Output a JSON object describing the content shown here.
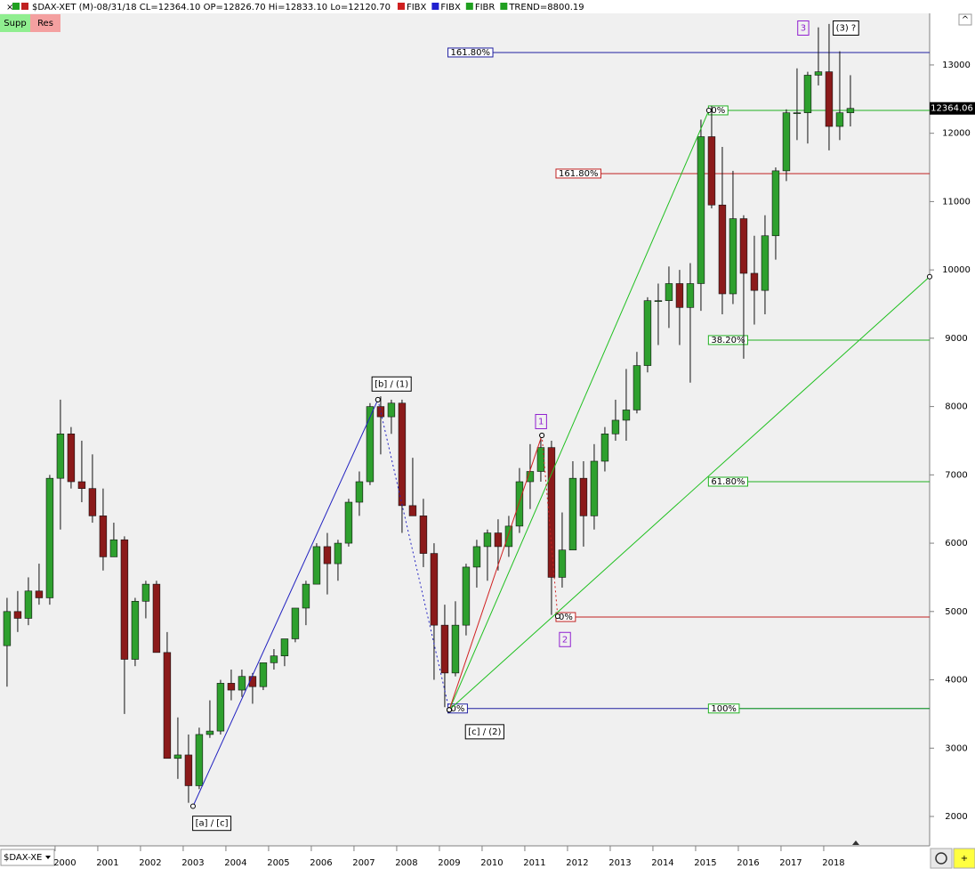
{
  "header": {
    "title": "$DAX-XET (M)-08/31/18 CL=12364.10 OP=12826.70 Hi=12833.10 Lo=12120.70",
    "indicators": [
      {
        "name": "FIBX",
        "color": "#d02020"
      },
      {
        "name": "FIBX",
        "color": "#2020d0"
      },
      {
        "name": "FIBR",
        "color": "#20a020"
      },
      {
        "name": "TREND=8800.19",
        "color": "#20a020"
      }
    ],
    "buttons": [
      {
        "label": "Supp",
        "color": "#90ee90"
      },
      {
        "label": "Res",
        "color": "#f4a0a0"
      }
    ]
  },
  "symbol_selector": "$DAX-XE",
  "chart_data": {
    "type": "candlestick",
    "x": [
      1998.875,
      1999.125,
      1999.375,
      1999.625,
      1999.875,
      2000.125,
      2000.375,
      2000.625,
      2000.875,
      2001.125,
      2001.375,
      2001.625,
      2001.875,
      2002.125,
      2002.375,
      2002.625,
      2002.875,
      2003.125,
      2003.375,
      2003.625,
      2003.875,
      2004.125,
      2004.375,
      2004.625,
      2004.875,
      2005.125,
      2005.375,
      2005.625,
      2005.875,
      2006.125,
      2006.375,
      2006.625,
      2006.875,
      2007.125,
      2007.375,
      2007.625,
      2007.875,
      2008.125,
      2008.375,
      2008.625,
      2008.875,
      2009.125,
      2009.375,
      2009.625,
      2009.875,
      2010.125,
      2010.375,
      2010.625,
      2010.875,
      2011.125,
      2011.375,
      2011.625,
      2011.875,
      2012.125,
      2012.375,
      2012.625,
      2012.875,
      2013.125,
      2013.375,
      2013.625,
      2013.875,
      2014.125,
      2014.375,
      2014.625,
      2014.875,
      2015.125,
      2015.375,
      2015.625,
      2015.875,
      2016.125,
      2016.375,
      2016.625,
      2016.875,
      2017.125,
      2017.375,
      2017.625,
      2017.875,
      2018.125,
      2018.375,
      2018.625
    ],
    "open": [
      4500,
      5000,
      4900,
      5300,
      5200,
      6950,
      7600,
      6900,
      6800,
      6400,
      5800,
      6050,
      4300,
      5150,
      5400,
      4400,
      2850,
      2900,
      2450,
      3200,
      3250,
      3950,
      3850,
      4050,
      3900,
      4250,
      4350,
      4600,
      5050,
      5400,
      5950,
      5700,
      6000,
      6600,
      6900,
      8000,
      7850,
      8050,
      6550,
      6400,
      5850,
      4800,
      4100,
      4800,
      5650,
      5950,
      6150,
      5950,
      6250,
      6900,
      7050,
      7400,
      5500,
      5900,
      6950,
      6400,
      7200,
      7600,
      7800,
      7950,
      8600,
      9550,
      9550,
      9800,
      9450,
      9800,
      11950,
      10950,
      9650,
      10750,
      9950,
      9700,
      10500,
      11450,
      12300,
      12300,
      12850,
      12900,
      12100,
      12300
    ],
    "high": [
      5200,
      5300,
      5500,
      5700,
      7000,
      8100,
      7700,
      7500,
      7300,
      6800,
      6300,
      6100,
      5200,
      5450,
      5450,
      4700,
      3450,
      3200,
      3300,
      3700,
      4000,
      4150,
      4150,
      4100,
      4250,
      4450,
      4600,
      5050,
      5450,
      6000,
      6150,
      6050,
      6650,
      7050,
      8050,
      8150,
      8100,
      8100,
      7250,
      6650,
      6000,
      5100,
      5150,
      5700,
      6050,
      6200,
      6350,
      6400,
      7100,
      7450,
      7600,
      7500,
      6450,
      7200,
      7200,
      7450,
      7700,
      8100,
      8550,
      8800,
      9600,
      9800,
      10050,
      10000,
      10100,
      12200,
      12400,
      11800,
      11450,
      10800,
      10500,
      10800,
      11500,
      12350,
      12950,
      12900,
      13550,
      13600,
      13200,
      12850
    ],
    "low": [
      3900,
      4700,
      4800,
      5100,
      5100,
      6200,
      6800,
      6600,
      6300,
      5600,
      5800,
      3500,
      4200,
      4900,
      4400,
      2850,
      2550,
      2200,
      2400,
      3150,
      3200,
      3700,
      3750,
      3650,
      3850,
      4150,
      4200,
      4550,
      4800,
      5400,
      5250,
      5450,
      5950,
      6400,
      6850,
      7300,
      7600,
      6150,
      6400,
      5650,
      4000,
      3600,
      4050,
      4650,
      5350,
      5450,
      5600,
      5800,
      6150,
      6500,
      6900,
      4950,
      5350,
      5900,
      5950,
      6200,
      7050,
      7500,
      7500,
      7900,
      8500,
      8900,
      9150,
      8900,
      8350,
      9400,
      10900,
      9350,
      9500,
      8700,
      9200,
      9350,
      10150,
      11300,
      11900,
      11850,
      12700,
      11750,
      11900,
      12100
    ],
    "close": [
      5000,
      4900,
      5300,
      5200,
      6950,
      7600,
      6900,
      6800,
      6400,
      5800,
      6050,
      4300,
      5150,
      5400,
      4400,
      2850,
      2900,
      2450,
      3200,
      3250,
      3950,
      3850,
      4050,
      3900,
      4250,
      4350,
      4600,
      5050,
      5400,
      5950,
      5700,
      6000,
      6600,
      6900,
      8000,
      7850,
      8050,
      6550,
      6400,
      5850,
      4800,
      4100,
      4800,
      5650,
      5950,
      6150,
      5950,
      6250,
      6900,
      7050,
      7400,
      5500,
      5900,
      6950,
      6400,
      7200,
      7600,
      7800,
      7950,
      8600,
      9550,
      9550,
      9800,
      9450,
      9800,
      11950,
      10950,
      9650,
      10750,
      9950,
      9700,
      10500,
      11450,
      12300,
      12300,
      12850,
      12900,
      12100,
      12300,
      12364.1
    ],
    "up_color": "#2ea02e",
    "down_color": "#8b1a1a",
    "xlim": [
      1998.71,
      2020.48
    ],
    "ylim": [
      1570,
      13755
    ],
    "xticks": [
      2000,
      2001,
      2002,
      2003,
      2004,
      2005,
      2006,
      2007,
      2008,
      2009,
      2010,
      2011,
      2012,
      2013,
      2014,
      2015,
      2016,
      2017,
      2018
    ],
    "yticks": [
      2000,
      3000,
      4000,
      5000,
      6000,
      7000,
      8000,
      9000,
      10000,
      11000,
      12000,
      13000
    ],
    "last_price": 12364.06,
    "fib_levels": [
      {
        "label": "161.80%",
        "value": 13182,
        "color": "#2020a0",
        "start": 2009.2,
        "label_x": 2009.2
      },
      {
        "label": "0%",
        "value": 3580,
        "color": "#2020a0",
        "start": 2009.2,
        "label_x": 2009.2
      },
      {
        "label": "0%",
        "value": 12335,
        "color": "#20b020",
        "start": 2015.3,
        "label_x": 2015.3
      },
      {
        "label": "38.20%",
        "value": 8973,
        "color": "#20b020",
        "start": 2015.3,
        "label_x": 2015.3
      },
      {
        "label": "61.80%",
        "value": 6900,
        "color": "#20b020",
        "start": 2015.3,
        "label_x": 2015.3
      },
      {
        "label": "100%",
        "value": 3580,
        "color": "#20b020",
        "start": 2015.3,
        "label_x": 2015.3
      },
      {
        "label": "161.80%",
        "value": 11410,
        "color": "#c02020",
        "start": 2011.73,
        "label_x": 2011.73
      },
      {
        "label": "0%",
        "value": 4919,
        "color": "#c02020",
        "start": 2011.73,
        "label_x": 2011.73
      }
    ],
    "trendlines": [
      {
        "x": [
          2003.23,
          2007.56
        ],
        "y": [
          2150,
          8100
        ],
        "color": "#2020c0",
        "dashed": false
      },
      {
        "x": [
          2007.56,
          2009.23
        ],
        "y": [
          8100,
          3560
        ],
        "color": "#2020c0",
        "dashed": true
      },
      {
        "x": [
          2009.23,
          2015.31
        ],
        "y": [
          3560,
          12335
        ],
        "color": "#20c020",
        "dashed": false
      },
      {
        "x": [
          2009.23,
          2020.48
        ],
        "y": [
          3560,
          9900
        ],
        "color": "#20c020",
        "dashed": false
      },
      {
        "x": [
          2009.23,
          2011.4
        ],
        "y": [
          3560,
          7578
        ],
        "color": "#d02020",
        "dashed": false
      },
      {
        "x": [
          2011.4,
          2011.77
        ],
        "y": [
          7578,
          4930
        ],
        "color": "#d02020",
        "dashed": true
      }
    ],
    "wave_labels": [
      {
        "label": "[a] / [c]",
        "x": 2003.67,
        "y": 1900,
        "color": "#000000"
      },
      {
        "label": "[b] / (1)",
        "x": 2007.88,
        "y": 8330,
        "color": "#000000"
      },
      {
        "label": "[c] / (2)",
        "x": 2010.06,
        "y": 3240,
        "color": "#000000"
      },
      {
        "label": "1",
        "x": 2011.38,
        "y": 7780,
        "color": "#9020d0"
      },
      {
        "label": "2",
        "x": 2011.94,
        "y": 4590,
        "color": "#9020d0"
      },
      {
        "label": "3",
        "x": 2017.52,
        "y": 13540,
        "color": "#9020d0"
      },
      {
        "label": "(3) ?",
        "x": 2018.52,
        "y": 13540,
        "color": "#000000"
      }
    ]
  }
}
